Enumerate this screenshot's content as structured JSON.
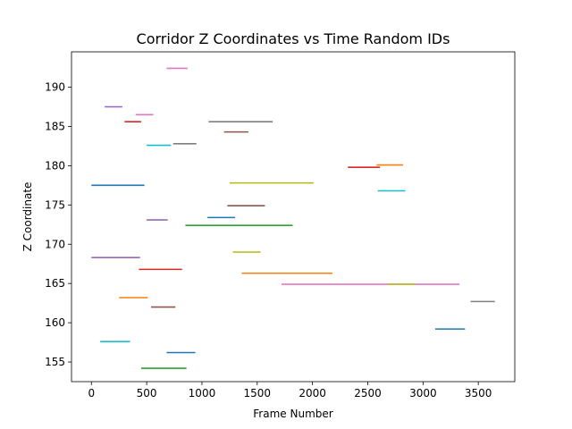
{
  "chart_data": {
    "type": "line",
    "title": "Corridor Z Coordinates vs Time Random IDs",
    "xlabel": "Frame Number",
    "ylabel": "Z Coordinate",
    "xlim": [
      -180,
      3830
    ],
    "ylim": [
      152.5,
      194.5
    ],
    "xticks": [
      0,
      500,
      1000,
      1500,
      2000,
      2500,
      3000,
      3500
    ],
    "yticks": [
      155,
      160,
      165,
      170,
      175,
      180,
      185,
      190
    ],
    "xtick_labels": [
      "0",
      "500",
      "1000",
      "1500",
      "2000",
      "2500",
      "3000",
      "3500"
    ],
    "ytick_labels": [
      "155",
      "160",
      "165",
      "170",
      "175",
      "180",
      "185",
      "190"
    ],
    "grid": false,
    "legend": "none",
    "series": [
      {
        "x": [
          0,
          480
        ],
        "y": [
          177.5,
          177.5
        ],
        "color": "#1f77b4"
      },
      {
        "x": [
          1050,
          1300
        ],
        "y": [
          173.4,
          173.4
        ],
        "color": "#1f77b4"
      },
      {
        "x": [
          680,
          940
        ],
        "y": [
          156.2,
          156.2
        ],
        "color": "#1f77b4"
      },
      {
        "x": [
          3110,
          3380
        ],
        "y": [
          159.2,
          159.2
        ],
        "color": "#1f77b4"
      },
      {
        "x": [
          2580,
          2820
        ],
        "y": [
          180.1,
          180.1
        ],
        "color": "#ff7f0e"
      },
      {
        "x": [
          1360,
          2180
        ],
        "y": [
          166.3,
          166.3
        ],
        "color": "#ff7f0e"
      },
      {
        "x": [
          250,
          510
        ],
        "y": [
          163.2,
          163.2
        ],
        "color": "#ff7f0e"
      },
      {
        "x": [
          850,
          1820
        ],
        "y": [
          172.4,
          172.4
        ],
        "color": "#2ca02c"
      },
      {
        "x": [
          450,
          860
        ],
        "y": [
          154.2,
          154.2
        ],
        "color": "#2ca02c"
      },
      {
        "x": [
          300,
          450
        ],
        "y": [
          185.6,
          185.6
        ],
        "color": "#d62728"
      },
      {
        "x": [
          430,
          820
        ],
        "y": [
          166.8,
          166.8
        ],
        "color": "#d62728"
      },
      {
        "x": [
          2320,
          2610
        ],
        "y": [
          179.8,
          179.8
        ],
        "color": "#d62728"
      },
      {
        "x": [
          120,
          280
        ],
        "y": [
          187.5,
          187.5
        ],
        "color": "#9467bd"
      },
      {
        "x": [
          0,
          440
        ],
        "y": [
          168.3,
          168.3
        ],
        "color": "#9467bd"
      },
      {
        "x": [
          500,
          690
        ],
        "y": [
          173.1,
          173.1
        ],
        "color": "#9467bd"
      },
      {
        "x": [
          1230,
          1570
        ],
        "y": [
          174.9,
          174.9
        ],
        "color": "#8c564b"
      },
      {
        "x": [
          1200,
          1420
        ],
        "y": [
          184.3,
          184.3
        ],
        "color": "#8c564b"
      },
      {
        "x": [
          540,
          760
        ],
        "y": [
          162.0,
          162.0
        ],
        "color": "#8c564b"
      },
      {
        "x": [
          680,
          870
        ],
        "y": [
          192.4,
          192.4
        ],
        "color": "#e377c2"
      },
      {
        "x": [
          400,
          560
        ],
        "y": [
          186.5,
          186.5
        ],
        "color": "#e377c2"
      },
      {
        "x": [
          1720,
          3330
        ],
        "y": [
          164.9,
          164.9
        ],
        "color": "#e377c2"
      },
      {
        "x": [
          1060,
          1640
        ],
        "y": [
          185.6,
          185.6
        ],
        "color": "#7f7f7f"
      },
      {
        "x": [
          740,
          950
        ],
        "y": [
          182.8,
          182.8
        ],
        "color": "#7f7f7f"
      },
      {
        "x": [
          3430,
          3650
        ],
        "y": [
          162.7,
          162.7
        ],
        "color": "#7f7f7f"
      },
      {
        "x": [
          1250,
          2010
        ],
        "y": [
          177.8,
          177.8
        ],
        "color": "#bcbd22"
      },
      {
        "x": [
          1280,
          1530
        ],
        "y": [
          169.0,
          169.0
        ],
        "color": "#bcbd22"
      },
      {
        "x": [
          2680,
          2930
        ],
        "y": [
          164.9,
          164.9
        ],
        "color": "#bcbd22"
      },
      {
        "x": [
          500,
          720
        ],
        "y": [
          182.6,
          182.6
        ],
        "color": "#17becf"
      },
      {
        "x": [
          2590,
          2840
        ],
        "y": [
          176.8,
          176.8
        ],
        "color": "#17becf"
      },
      {
        "x": [
          80,
          350
        ],
        "y": [
          157.6,
          157.6
        ],
        "color": "#17becf"
      }
    ]
  }
}
